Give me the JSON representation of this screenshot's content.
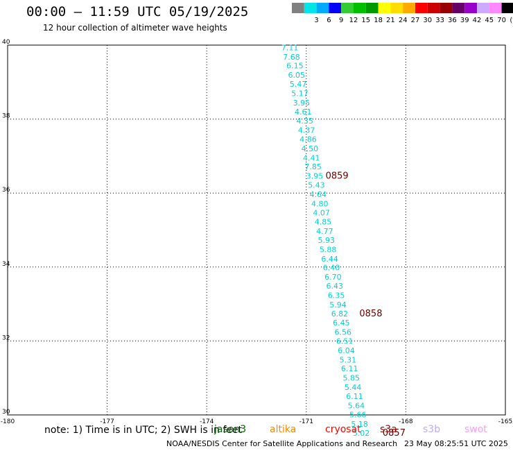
{
  "header": {
    "title": "00:00 – 11:59 UTC 05/19/2025",
    "subtitle": "12 hour collection of altimeter wave heights"
  },
  "color_scale": {
    "unit": "(ft)",
    "bins": [
      {
        "color": "#808080",
        "label": ""
      },
      {
        "color": "#00e5e5",
        "label": "3"
      },
      {
        "color": "#00aaff",
        "label": "6"
      },
      {
        "color": "#0000ff",
        "label": "9"
      },
      {
        "color": "#33cc33",
        "label": "12"
      },
      {
        "color": "#00c000",
        "label": "15"
      },
      {
        "color": "#009900",
        "label": "18"
      },
      {
        "color": "#ffff00",
        "label": "21"
      },
      {
        "color": "#ffdd00",
        "label": "24"
      },
      {
        "color": "#ffaa00",
        "label": "27"
      },
      {
        "color": "#ff0000",
        "label": "30"
      },
      {
        "color": "#cc0000",
        "label": "33"
      },
      {
        "color": "#990000",
        "label": "36"
      },
      {
        "color": "#660066",
        "label": "39"
      },
      {
        "color": "#9900cc",
        "label": "42"
      },
      {
        "color": "#ccaaff",
        "label": "45"
      },
      {
        "color": "#ff88ff",
        "label": "70"
      },
      {
        "color": "#000000",
        "label": ""
      }
    ]
  },
  "map": {
    "lon_range": [
      -180,
      -165
    ],
    "lat_range": [
      30,
      40
    ],
    "x_ticks": [
      "-180",
      "-177",
      "-174",
      "-171",
      "-168",
      "-165"
    ],
    "y_ticks": [
      "30",
      "32",
      "34",
      "36",
      "38",
      "40"
    ],
    "observation_color": "#00d2d2",
    "observations": [
      {
        "lon": -171.75,
        "lat": 39.86,
        "label": "7.11"
      },
      {
        "lon": -171.7,
        "lat": 39.61,
        "label": "7.68"
      },
      {
        "lon": -171.6,
        "lat": 39.37,
        "label": "6.15"
      },
      {
        "lon": -171.55,
        "lat": 39.12,
        "label": "6.05"
      },
      {
        "lon": -171.5,
        "lat": 38.87,
        "label": "5.47"
      },
      {
        "lon": -171.45,
        "lat": 38.62,
        "label": "5.17"
      },
      {
        "lon": -171.4,
        "lat": 38.37,
        "label": "3.95"
      },
      {
        "lon": -171.35,
        "lat": 38.12,
        "label": "4.61"
      },
      {
        "lon": -171.3,
        "lat": 37.88,
        "label": "4.35"
      },
      {
        "lon": -171.25,
        "lat": 37.63,
        "label": "4.37"
      },
      {
        "lon": -171.2,
        "lat": 37.38,
        "label": "4.86"
      },
      {
        "lon": -171.15,
        "lat": 37.13,
        "label": "4.50"
      },
      {
        "lon": -171.1,
        "lat": 36.88,
        "label": "4.41"
      },
      {
        "lon": -171.05,
        "lat": 36.64,
        "label": "7.85"
      },
      {
        "lon": -171.0,
        "lat": 36.39,
        "label": "3.95"
      },
      {
        "lon": -170.95,
        "lat": 36.14,
        "label": "5.43"
      },
      {
        "lon": -170.9,
        "lat": 35.89,
        "label": "4.64"
      },
      {
        "lon": -170.85,
        "lat": 35.64,
        "label": "4.80"
      },
      {
        "lon": -170.8,
        "lat": 35.39,
        "label": "4.07"
      },
      {
        "lon": -170.75,
        "lat": 35.15,
        "label": "4.85"
      },
      {
        "lon": -170.7,
        "lat": 34.9,
        "label": "4.77"
      },
      {
        "lon": -170.65,
        "lat": 34.65,
        "label": "5.93"
      },
      {
        "lon": -170.6,
        "lat": 34.4,
        "label": "5.88"
      },
      {
        "lon": -170.55,
        "lat": 34.15,
        "label": "6.44"
      },
      {
        "lon": -170.5,
        "lat": 33.91,
        "label": "6.40"
      },
      {
        "lon": -170.45,
        "lat": 33.66,
        "label": "6.70"
      },
      {
        "lon": -170.4,
        "lat": 33.41,
        "label": "6.43"
      },
      {
        "lon": -170.35,
        "lat": 33.16,
        "label": "6.35"
      },
      {
        "lon": -170.3,
        "lat": 32.91,
        "label": "5.94"
      },
      {
        "lon": -170.25,
        "lat": 32.66,
        "label": "6.82"
      },
      {
        "lon": -170.2,
        "lat": 32.42,
        "label": "6.45"
      },
      {
        "lon": -170.15,
        "lat": 32.17,
        "label": "6.56"
      },
      {
        "lon": -170.1,
        "lat": 31.92,
        "label": "6.51"
      },
      {
        "lon": -170.05,
        "lat": 31.67,
        "label": "6.04"
      },
      {
        "lon": -170.0,
        "lat": 31.42,
        "label": "5.31"
      },
      {
        "lon": -169.95,
        "lat": 31.18,
        "label": "6.11"
      },
      {
        "lon": -169.9,
        "lat": 30.93,
        "label": "5.85"
      },
      {
        "lon": -169.85,
        "lat": 30.68,
        "label": "5.44"
      },
      {
        "lon": -169.8,
        "lat": 30.43,
        "label": "6.11"
      },
      {
        "lon": -169.75,
        "lat": 30.18,
        "label": "5.64"
      },
      {
        "lon": -169.7,
        "lat": 29.93,
        "label": "5.66"
      },
      {
        "lon": -169.65,
        "lat": 29.68,
        "label": "5.18"
      },
      {
        "lon": -169.6,
        "lat": 29.44,
        "label": "5.02"
      }
    ],
    "time_color": "#660000",
    "time_labels": [
      {
        "lon": -170.42,
        "lat": 36.39,
        "label": "0859"
      },
      {
        "lon": -169.4,
        "lat": 32.66,
        "label": "0858"
      },
      {
        "lon": -168.7,
        "lat": 29.44,
        "label": "0857"
      }
    ]
  },
  "footer": {
    "note": "note:  1) Time is in UTC;  2) SWH is in feet",
    "satellites": [
      {
        "name": "jason3",
        "color": "#006600"
      },
      {
        "name": "altika",
        "color": "#ff8800"
      },
      {
        "name": "cryosat",
        "color": "#ff0000"
      },
      {
        "name": "s3a",
        "color": "#990000"
      },
      {
        "name": "s3b",
        "color": "#bbaaff"
      },
      {
        "name": "swot",
        "color": "#ff99ff"
      }
    ],
    "credit": "NOAA/NESDIS Center for Satellite Applications and Research",
    "timestamp": "23 May 08:25:51 UTC 2025"
  }
}
